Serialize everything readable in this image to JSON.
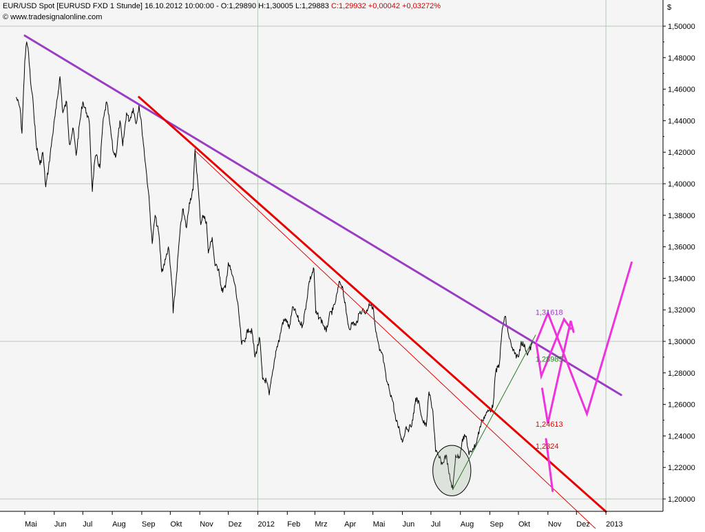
{
  "header": {
    "instrument": "EUR/USD Spot [EURUSD FXD  1 Stunde] 16.10.2012 10:00:00 - O:1,29890 H:1,30005 L:1,29883",
    "close_change": "C:1,29932 +0,00042 +0,03272%",
    "copyright": "© www.tradesignalonline.com",
    "currency": "$"
  },
  "colors": {
    "price": "#000000",
    "upper_trend": "#9b3cc4",
    "lower_trend": "#e60000",
    "projection": "#ee33dd",
    "support": "#2a7a2a",
    "grid": "#b8c8b8",
    "plot_bg": "#f5f5f5"
  },
  "chart_data": {
    "type": "line",
    "x_axis_ticks": [
      {
        "label": "Mai",
        "date": "2011-05-01"
      },
      {
        "label": "Jun",
        "date": "2011-06-01"
      },
      {
        "label": "Jul",
        "date": "2011-07-01"
      },
      {
        "label": "Aug",
        "date": "2011-08-01"
      },
      {
        "label": "Sep",
        "date": "2011-09-01"
      },
      {
        "label": "Okt",
        "date": "2011-10-01"
      },
      {
        "label": "Nov",
        "date": "2011-11-01"
      },
      {
        "label": "Dez",
        "date": "2011-12-01"
      },
      {
        "label": "2012",
        "date": "2012-01-01"
      },
      {
        "label": "Feb",
        "date": "2012-02-01"
      },
      {
        "label": "Mrz",
        "date": "2012-03-01"
      },
      {
        "label": "Apr",
        "date": "2012-04-01"
      },
      {
        "label": "Mai",
        "date": "2012-05-01"
      },
      {
        "label": "Jun",
        "date": "2012-06-01"
      },
      {
        "label": "Jul",
        "date": "2012-07-01"
      },
      {
        "label": "Aug",
        "date": "2012-08-01"
      },
      {
        "label": "Sep",
        "date": "2012-09-01"
      },
      {
        "label": "Okt",
        "date": "2012-10-01"
      },
      {
        "label": "Nov",
        "date": "2012-11-01"
      },
      {
        "label": "Dez",
        "date": "2012-12-01"
      },
      {
        "label": "2013",
        "date": "2013-01-01"
      }
    ],
    "y_axis": {
      "ylim": [
        1.195,
        1.515
      ],
      "ticks": [
        "1,20000",
        "1,22000",
        "1,24000",
        "1,26000",
        "1,28000",
        "1,30000",
        "1,32000",
        "1,34000",
        "1,36000",
        "1,38000",
        "1,40000",
        "1,42000",
        "1,44000",
        "1,46000",
        "1,48000",
        "1,50000"
      ],
      "major_gridlines": [
        1.2,
        1.3,
        1.4,
        1.5
      ]
    },
    "series": [
      {
        "values": [
          [
            "2011-04-22",
            1.455
          ],
          [
            "2011-04-26",
            1.448
          ],
          [
            "2011-04-28",
            1.432
          ],
          [
            "2011-05-01",
            1.478
          ],
          [
            "2011-05-03",
            1.49
          ],
          [
            "2011-05-05",
            1.483
          ],
          [
            "2011-05-07",
            1.465
          ],
          [
            "2011-05-10",
            1.45
          ],
          [
            "2011-05-13",
            1.425
          ],
          [
            "2011-05-17",
            1.412
          ],
          [
            "2011-05-20",
            1.42
          ],
          [
            "2011-05-23",
            1.398
          ],
          [
            "2011-05-26",
            1.41
          ],
          [
            "2011-05-30",
            1.43
          ],
          [
            "2011-06-03",
            1.448
          ],
          [
            "2011-06-07",
            1.468
          ],
          [
            "2011-06-10",
            1.445
          ],
          [
            "2011-06-14",
            1.452
          ],
          [
            "2011-06-17",
            1.425
          ],
          [
            "2011-06-21",
            1.435
          ],
          [
            "2011-06-24",
            1.418
          ],
          [
            "2011-06-28",
            1.44
          ],
          [
            "2011-07-01",
            1.452
          ],
          [
            "2011-07-05",
            1.445
          ],
          [
            "2011-07-08",
            1.438
          ],
          [
            "2011-07-11",
            1.395
          ],
          [
            "2011-07-13",
            1.412
          ],
          [
            "2011-07-15",
            1.418
          ],
          [
            "2011-07-19",
            1.41
          ],
          [
            "2011-07-22",
            1.438
          ],
          [
            "2011-07-26",
            1.452
          ],
          [
            "2011-07-29",
            1.44
          ],
          [
            "2011-08-02",
            1.42
          ],
          [
            "2011-08-05",
            1.418
          ],
          [
            "2011-08-09",
            1.44
          ],
          [
            "2011-08-12",
            1.424
          ],
          [
            "2011-08-16",
            1.445
          ],
          [
            "2011-08-19",
            1.44
          ],
          [
            "2011-08-23",
            1.448
          ],
          [
            "2011-08-26",
            1.438
          ],
          [
            "2011-08-29",
            1.45
          ],
          [
            "2011-09-01",
            1.436
          ],
          [
            "2011-09-05",
            1.412
          ],
          [
            "2011-09-08",
            1.395
          ],
          [
            "2011-09-12",
            1.362
          ],
          [
            "2011-09-15",
            1.38
          ],
          [
            "2011-09-19",
            1.368
          ],
          [
            "2011-09-22",
            1.344
          ],
          [
            "2011-09-26",
            1.352
          ],
          [
            "2011-09-29",
            1.36
          ],
          [
            "2011-10-03",
            1.334
          ],
          [
            "2011-10-04",
            1.318
          ],
          [
            "2011-10-07",
            1.338
          ],
          [
            "2011-10-11",
            1.368
          ],
          [
            "2011-10-14",
            1.384
          ],
          [
            "2011-10-18",
            1.372
          ],
          [
            "2011-10-21",
            1.388
          ],
          [
            "2011-10-25",
            1.396
          ],
          [
            "2011-10-27",
            1.422
          ],
          [
            "2011-10-31",
            1.392
          ],
          [
            "2011-11-02",
            1.374
          ],
          [
            "2011-11-04",
            1.38
          ],
          [
            "2011-11-08",
            1.376
          ],
          [
            "2011-11-10",
            1.356
          ],
          [
            "2011-11-14",
            1.366
          ],
          [
            "2011-11-17",
            1.348
          ],
          [
            "2011-11-21",
            1.346
          ],
          [
            "2011-11-24",
            1.332
          ],
          [
            "2011-11-28",
            1.334
          ],
          [
            "2011-12-01",
            1.35
          ],
          [
            "2011-12-05",
            1.342
          ],
          [
            "2011-12-08",
            1.336
          ],
          [
            "2011-12-12",
            1.318
          ],
          [
            "2011-12-15",
            1.298
          ],
          [
            "2011-12-19",
            1.302
          ],
          [
            "2011-12-22",
            1.308
          ],
          [
            "2011-12-26",
            1.306
          ],
          [
            "2011-12-29",
            1.29
          ],
          [
            "2012-01-03",
            1.302
          ],
          [
            "2012-01-06",
            1.276
          ],
          [
            "2012-01-10",
            1.275
          ],
          [
            "2012-01-13",
            1.266
          ],
          [
            "2012-01-17",
            1.282
          ],
          [
            "2012-01-20",
            1.294
          ],
          [
            "2012-01-24",
            1.302
          ],
          [
            "2012-01-27",
            1.312
          ],
          [
            "2012-01-31",
            1.314
          ],
          [
            "2012-02-03",
            1.308
          ],
          [
            "2012-02-07",
            1.322
          ],
          [
            "2012-02-10",
            1.318
          ],
          [
            "2012-02-14",
            1.312
          ],
          [
            "2012-02-17",
            1.31
          ],
          [
            "2012-02-21",
            1.324
          ],
          [
            "2012-02-24",
            1.338
          ],
          [
            "2012-02-29",
            1.346
          ],
          [
            "2012-03-02",
            1.318
          ],
          [
            "2012-03-06",
            1.315
          ],
          [
            "2012-03-09",
            1.312
          ],
          [
            "2012-03-13",
            1.306
          ],
          [
            "2012-03-16",
            1.316
          ],
          [
            "2012-03-20",
            1.32
          ],
          [
            "2012-03-23",
            1.326
          ],
          [
            "2012-03-27",
            1.338
          ],
          [
            "2012-03-30",
            1.335
          ],
          [
            "2012-04-03",
            1.318
          ],
          [
            "2012-04-06",
            1.308
          ],
          [
            "2012-04-10",
            1.312
          ],
          [
            "2012-04-13",
            1.31
          ],
          [
            "2012-04-17",
            1.318
          ],
          [
            "2012-04-20",
            1.32
          ],
          [
            "2012-04-24",
            1.318
          ],
          [
            "2012-04-27",
            1.324
          ],
          [
            "2012-05-01",
            1.322
          ],
          [
            "2012-05-04",
            1.306
          ],
          [
            "2012-05-08",
            1.294
          ],
          [
            "2012-05-11",
            1.292
          ],
          [
            "2012-05-15",
            1.276
          ],
          [
            "2012-05-18",
            1.27
          ],
          [
            "2012-05-22",
            1.262
          ],
          [
            "2012-05-25",
            1.25
          ],
          [
            "2012-05-29",
            1.244
          ],
          [
            "2012-06-01",
            1.236
          ],
          [
            "2012-06-05",
            1.246
          ],
          [
            "2012-06-08",
            1.244
          ],
          [
            "2012-06-12",
            1.25
          ],
          [
            "2012-06-15",
            1.264
          ],
          [
            "2012-06-19",
            1.26
          ],
          [
            "2012-06-22",
            1.25
          ],
          [
            "2012-06-26",
            1.246
          ],
          [
            "2012-06-29",
            1.268
          ],
          [
            "2012-07-03",
            1.256
          ],
          [
            "2012-07-06",
            1.23
          ],
          [
            "2012-07-10",
            1.226
          ],
          [
            "2012-07-13",
            1.222
          ],
          [
            "2012-07-17",
            1.228
          ],
          [
            "2012-07-20",
            1.216
          ],
          [
            "2012-07-24",
            1.206
          ],
          [
            "2012-07-27",
            1.228
          ],
          [
            "2012-07-31",
            1.226
          ],
          [
            "2012-08-03",
            1.238
          ],
          [
            "2012-08-07",
            1.24
          ],
          [
            "2012-08-10",
            1.228
          ],
          [
            "2012-08-14",
            1.232
          ],
          [
            "2012-08-17",
            1.234
          ],
          [
            "2012-08-21",
            1.244
          ],
          [
            "2012-08-24",
            1.25
          ],
          [
            "2012-08-28",
            1.254
          ],
          [
            "2012-08-31",
            1.256
          ],
          [
            "2012-09-04",
            1.258
          ],
          [
            "2012-09-07",
            1.28
          ],
          [
            "2012-09-11",
            1.286
          ],
          [
            "2012-09-14",
            1.308
          ],
          [
            "2012-09-17",
            1.316
          ],
          [
            "2012-09-20",
            1.306
          ],
          [
            "2012-09-24",
            1.296
          ],
          [
            "2012-09-27",
            1.292
          ],
          [
            "2012-10-01",
            1.29
          ],
          [
            "2012-10-04",
            1.3
          ],
          [
            "2012-10-08",
            1.296
          ],
          [
            "2012-10-11",
            1.292
          ],
          [
            "2012-10-16",
            1.299
          ]
        ]
      }
    ],
    "trendlines": [
      {
        "id": "upper",
        "color": "#9b3cc4",
        "from": [
          "2011-05-01",
          1.494
        ],
        "to": [
          "2013-01-17",
          1.266
        ]
      },
      {
        "id": "lower-thick",
        "color": "#e60000",
        "from": [
          "2011-08-29",
          1.455
        ],
        "to": [
          "2013-01-01",
          1.192
        ]
      },
      {
        "id": "lower-thin",
        "color": "#e60000",
        "from": [
          "2011-10-27",
          1.421
        ],
        "to": [
          "2013-01-01",
          1.175
        ]
      },
      {
        "id": "support",
        "color": "#2a7a2a",
        "from": [
          "2012-07-24",
          1.206
        ],
        "to": [
          "2012-10-19",
          1.304
        ]
      }
    ],
    "projections": [
      {
        "id": "path-a",
        "points": [
          [
            "2012-10-20",
            1.3
          ],
          [
            "2012-11-01",
            1.318
          ],
          [
            "2012-12-12",
            1.254
          ],
          [
            "2013-01-28",
            1.35
          ]
        ]
      },
      {
        "id": "path-b",
        "points": [
          [
            "2012-10-20",
            1.298
          ],
          [
            "2012-10-25",
            1.278
          ],
          [
            "2012-11-18",
            1.314
          ],
          [
            "2012-11-25",
            1.308
          ]
        ]
      },
      {
        "id": "path-c",
        "points": [
          [
            "2012-10-26",
            1.27
          ],
          [
            "2012-11-01",
            1.248
          ],
          [
            "2012-11-25",
            1.313
          ],
          [
            "2012-11-28",
            1.306
          ]
        ]
      },
      {
        "id": "path-d",
        "points": [
          [
            "2012-10-30",
            1.238
          ],
          [
            "2012-11-06",
            1.205
          ]
        ]
      }
    ],
    "ellipses": [
      {
        "center": [
          "2012-07-23",
          1.218
        ],
        "rx_days": 20,
        "ry": 0.016,
        "color": "#2a7a2a"
      }
    ],
    "annotations": [
      {
        "text": "1,31618",
        "at": [
          "2012-10-19",
          1.3168
        ],
        "color": "#9b3cc4"
      },
      {
        "text": "1,28985",
        "at": [
          "2012-10-19",
          1.2871
        ],
        "color": "#2a7a2a"
      },
      {
        "text": "1,24613",
        "at": [
          "2012-10-19",
          1.2458
        ],
        "color": "#e60000"
      },
      {
        "text": "1,2324",
        "at": [
          "2012-10-19",
          1.2318
        ],
        "color": "#e60000"
      }
    ]
  }
}
